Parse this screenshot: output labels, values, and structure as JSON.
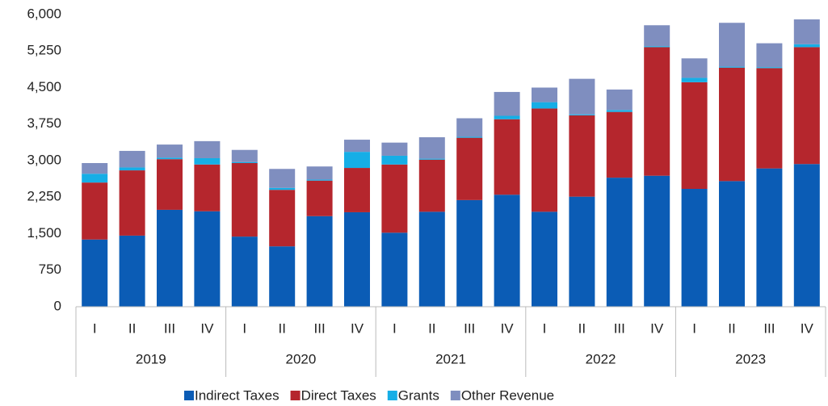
{
  "chart_data": {
    "type": "stacked_bar",
    "categories": [
      "I",
      "II",
      "III",
      "IV",
      "I",
      "II",
      "III",
      "IV",
      "I",
      "II",
      "III",
      "IV",
      "I",
      "II",
      "III",
      "IV",
      "I",
      "II",
      "III",
      "IV"
    ],
    "groups": [
      "2019",
      "2020",
      "2021",
      "2022",
      "2023"
    ],
    "series": [
      {
        "name": "Indirect Taxes",
        "color": "#0b5cb5",
        "values": [
          1380,
          1460,
          1990,
          1960,
          1440,
          1240,
          1860,
          1940,
          1520,
          1950,
          2190,
          2300,
          1950,
          2260,
          2650,
          2690,
          2420,
          2580,
          2840,
          2930
        ]
      },
      {
        "name": "Direct Taxes",
        "color": "#b5262d",
        "values": [
          1170,
          1340,
          1040,
          960,
          1510,
          1160,
          730,
          910,
          1400,
          1070,
          1280,
          1550,
          2120,
          1670,
          1350,
          2640,
          2190,
          2330,
          2060,
          2400
        ]
      },
      {
        "name": "Grants",
        "color": "#16aee6",
        "values": [
          180,
          60,
          30,
          130,
          20,
          40,
          20,
          330,
          180,
          20,
          20,
          70,
          130,
          20,
          40,
          20,
          90,
          20,
          20,
          60
        ]
      },
      {
        "name": "Other Revenue",
        "color": "#7f8ebf",
        "values": [
          220,
          340,
          270,
          350,
          250,
          390,
          270,
          250,
          270,
          440,
          380,
          490,
          300,
          730,
          420,
          430,
          400,
          900,
          490,
          510
        ]
      }
    ],
    "ylim": [
      0,
      6000
    ],
    "yticks": [
      0,
      750,
      {
        "value": 1500,
        "label": "1,500"
      },
      {
        "value": 2250,
        "label": "2,250"
      },
      {
        "value": 3000,
        "label": "3,000"
      },
      {
        "value": 3750,
        "label": "3,750"
      },
      {
        "value": 4500,
        "label": "4,500"
      },
      {
        "value": 5250,
        "label": "5,250"
      },
      {
        "value": 6000,
        "label": "6,000"
      }
    ],
    "legend": "bottom"
  }
}
